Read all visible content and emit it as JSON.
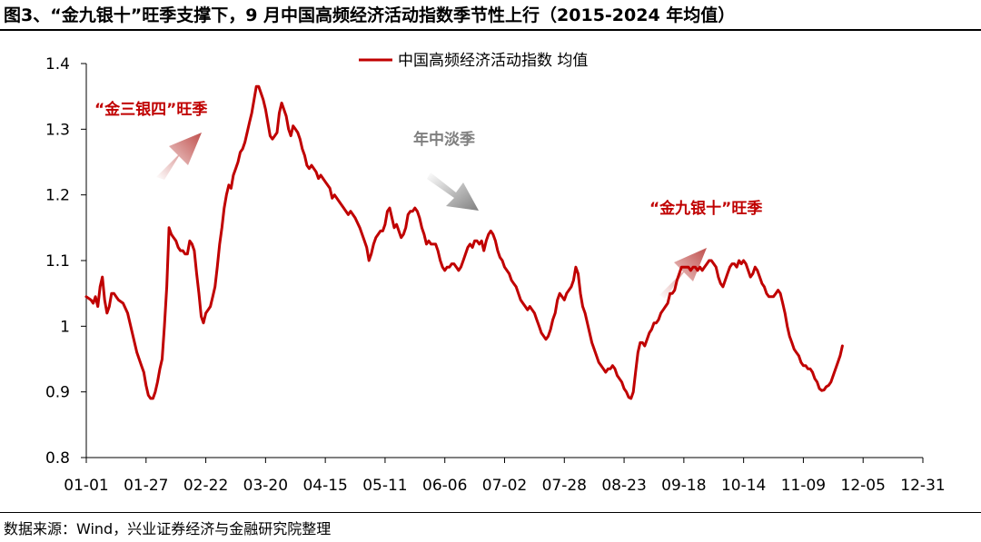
{
  "title": "图3、“金九银十”旺季支撑下，9 月中国高频经济活动指数季节性上行（2015-2024 年均值）",
  "source": "数据来源：Wind，兴业证券经济与金融研究院整理",
  "colors": {
    "line": "#c00000",
    "arrow_red": "#c0504d",
    "arrow_gray": "#7f7f7f",
    "annotation_red": "#c00000",
    "annotation_gray": "#7f7f7f"
  },
  "chart_data": {
    "type": "line",
    "legend": {
      "label": "中国高频经济活动指数 均值",
      "position": "top-center"
    },
    "ylim": [
      0.8,
      1.4
    ],
    "yticks": [
      "0.8",
      "0.9",
      "1",
      "1.1",
      "1.2",
      "1.3",
      "1.4"
    ],
    "xlim": [
      0,
      364
    ],
    "xticks": [
      "01-01",
      "01-27",
      "02-22",
      "03-20",
      "04-15",
      "05-11",
      "06-06",
      "07-02",
      "07-28",
      "08-23",
      "09-18",
      "10-14",
      "11-09",
      "12-05",
      "12-31"
    ],
    "grid": false,
    "annotations": [
      {
        "text": "“金三银四”旺季",
        "color": "red",
        "arrow": "up-right"
      },
      {
        "text": "年中淡季",
        "color": "gray",
        "arrow": "down-right"
      },
      {
        "text": "“金九银十”旺季",
        "color": "red",
        "arrow": "up-right"
      }
    ],
    "series": [
      {
        "name": "中国高频经济活动指数 均值",
        "points": [
          [
            0,
            1.045
          ],
          [
            2,
            1.04
          ],
          [
            3,
            1.035
          ],
          [
            4,
            1.045
          ],
          [
            5,
            1.03
          ],
          [
            6,
            1.06
          ],
          [
            7,
            1.075
          ],
          [
            8,
            1.04
          ],
          [
            9,
            1.02
          ],
          [
            10,
            1.03
          ],
          [
            11,
            1.05
          ],
          [
            12,
            1.05
          ],
          [
            13,
            1.045
          ],
          [
            14,
            1.04
          ],
          [
            16,
            1.035
          ],
          [
            18,
            1.02
          ],
          [
            20,
            0.99
          ],
          [
            22,
            0.96
          ],
          [
            24,
            0.94
          ],
          [
            25,
            0.93
          ],
          [
            26,
            0.91
          ],
          [
            27,
            0.895
          ],
          [
            28,
            0.89
          ],
          [
            29,
            0.89
          ],
          [
            30,
            0.9
          ],
          [
            31,
            0.915
          ],
          [
            32,
            0.935
          ],
          [
            33,
            0.95
          ],
          [
            34,
            1.0
          ],
          [
            35,
            1.06
          ],
          [
            36,
            1.15
          ],
          [
            37,
            1.14
          ],
          [
            38,
            1.135
          ],
          [
            39,
            1.13
          ],
          [
            40,
            1.12
          ],
          [
            41,
            1.115
          ],
          [
            42,
            1.115
          ],
          [
            43,
            1.11
          ],
          [
            44,
            1.11
          ],
          [
            45,
            1.13
          ],
          [
            46,
            1.125
          ],
          [
            47,
            1.115
          ],
          [
            48,
            1.08
          ],
          [
            49,
            1.05
          ],
          [
            50,
            1.015
          ],
          [
            51,
            1.005
          ],
          [
            52,
            1.02
          ],
          [
            53,
            1.025
          ],
          [
            54,
            1.03
          ],
          [
            55,
            1.045
          ],
          [
            56,
            1.06
          ],
          [
            57,
            1.09
          ],
          [
            58,
            1.125
          ],
          [
            59,
            1.15
          ],
          [
            60,
            1.18
          ],
          [
            61,
            1.2
          ],
          [
            62,
            1.215
          ],
          [
            63,
            1.21
          ],
          [
            64,
            1.23
          ],
          [
            65,
            1.24
          ],
          [
            66,
            1.25
          ],
          [
            67,
            1.265
          ],
          [
            68,
            1.27
          ],
          [
            69,
            1.28
          ],
          [
            70,
            1.295
          ],
          [
            71,
            1.31
          ],
          [
            72,
            1.325
          ],
          [
            73,
            1.345
          ],
          [
            74,
            1.365
          ],
          [
            75,
            1.365
          ],
          [
            76,
            1.355
          ],
          [
            77,
            1.345
          ],
          [
            78,
            1.33
          ],
          [
            79,
            1.31
          ],
          [
            80,
            1.29
          ],
          [
            81,
            1.285
          ],
          [
            82,
            1.29
          ],
          [
            83,
            1.295
          ],
          [
            84,
            1.325
          ],
          [
            85,
            1.34
          ],
          [
            86,
            1.33
          ],
          [
            87,
            1.32
          ],
          [
            88,
            1.3
          ],
          [
            89,
            1.29
          ],
          [
            90,
            1.305
          ],
          [
            91,
            1.3
          ],
          [
            92,
            1.295
          ],
          [
            93,
            1.285
          ],
          [
            94,
            1.27
          ],
          [
            95,
            1.26
          ],
          [
            96,
            1.245
          ],
          [
            97,
            1.24
          ],
          [
            98,
            1.245
          ],
          [
            99,
            1.24
          ],
          [
            100,
            1.235
          ],
          [
            101,
            1.225
          ],
          [
            102,
            1.23
          ],
          [
            104,
            1.22
          ],
          [
            106,
            1.21
          ],
          [
            107,
            1.195
          ],
          [
            108,
            1.2
          ],
          [
            110,
            1.19
          ],
          [
            112,
            1.18
          ],
          [
            114,
            1.17
          ],
          [
            115,
            1.175
          ],
          [
            117,
            1.165
          ],
          [
            119,
            1.15
          ],
          [
            121,
            1.13
          ],
          [
            122,
            1.12
          ],
          [
            123,
            1.1
          ],
          [
            124,
            1.11
          ],
          [
            125,
            1.125
          ],
          [
            126,
            1.135
          ],
          [
            127,
            1.14
          ],
          [
            128,
            1.145
          ],
          [
            129,
            1.145
          ],
          [
            130,
            1.155
          ],
          [
            131,
            1.175
          ],
          [
            132,
            1.18
          ],
          [
            133,
            1.165
          ],
          [
            134,
            1.15
          ],
          [
            135,
            1.155
          ],
          [
            136,
            1.145
          ],
          [
            137,
            1.135
          ],
          [
            138,
            1.14
          ],
          [
            139,
            1.15
          ],
          [
            140,
            1.17
          ],
          [
            141,
            1.175
          ],
          [
            142,
            1.175
          ],
          [
            143,
            1.18
          ],
          [
            144,
            1.175
          ],
          [
            145,
            1.165
          ],
          [
            146,
            1.15
          ],
          [
            147,
            1.14
          ],
          [
            148,
            1.125
          ],
          [
            149,
            1.13
          ],
          [
            150,
            1.125
          ],
          [
            152,
            1.125
          ],
          [
            153,
            1.115
          ],
          [
            154,
            1.1
          ],
          [
            155,
            1.09
          ],
          [
            156,
            1.085
          ],
          [
            157,
            1.09
          ],
          [
            158,
            1.09
          ],
          [
            159,
            1.095
          ],
          [
            160,
            1.095
          ],
          [
            161,
            1.09
          ],
          [
            162,
            1.085
          ],
          [
            163,
            1.09
          ],
          [
            164,
            1.1
          ],
          [
            165,
            1.11
          ],
          [
            166,
            1.12
          ],
          [
            167,
            1.125
          ],
          [
            168,
            1.12
          ],
          [
            169,
            1.13
          ],
          [
            170,
            1.13
          ],
          [
            171,
            1.125
          ],
          [
            172,
            1.13
          ],
          [
            173,
            1.115
          ],
          [
            174,
            1.13
          ],
          [
            175,
            1.14
          ],
          [
            176,
            1.145
          ],
          [
            177,
            1.14
          ],
          [
            178,
            1.13
          ],
          [
            179,
            1.115
          ],
          [
            180,
            1.105
          ],
          [
            181,
            1.1
          ],
          [
            182,
            1.09
          ],
          [
            184,
            1.08
          ],
          [
            185,
            1.07
          ],
          [
            186,
            1.065
          ],
          [
            187,
            1.06
          ],
          [
            188,
            1.05
          ],
          [
            189,
            1.04
          ],
          [
            190,
            1.035
          ],
          [
            191,
            1.03
          ],
          [
            192,
            1.025
          ],
          [
            193,
            1.03
          ],
          [
            194,
            1.025
          ],
          [
            195,
            1.02
          ],
          [
            196,
            1.01
          ],
          [
            197,
            1.0
          ],
          [
            198,
            0.99
          ],
          [
            199,
            0.985
          ],
          [
            200,
            0.98
          ],
          [
            201,
            0.985
          ],
          [
            202,
            0.995
          ],
          [
            203,
            1.01
          ],
          [
            204,
            1.02
          ],
          [
            205,
            1.04
          ],
          [
            206,
            1.05
          ],
          [
            207,
            1.045
          ],
          [
            208,
            1.04
          ],
          [
            209,
            1.05
          ],
          [
            210,
            1.055
          ],
          [
            211,
            1.06
          ],
          [
            212,
            1.07
          ],
          [
            213,
            1.09
          ],
          [
            214,
            1.08
          ],
          [
            215,
            1.05
          ],
          [
            216,
            1.03
          ],
          [
            217,
            1.02
          ],
          [
            218,
            1.005
          ],
          [
            219,
            0.99
          ],
          [
            220,
            0.975
          ],
          [
            221,
            0.965
          ],
          [
            222,
            0.955
          ],
          [
            223,
            0.945
          ],
          [
            224,
            0.94
          ],
          [
            225,
            0.935
          ],
          [
            226,
            0.93
          ],
          [
            227,
            0.935
          ],
          [
            228,
            0.935
          ],
          [
            229,
            0.94
          ],
          [
            230,
            0.935
          ],
          [
            231,
            0.925
          ],
          [
            232,
            0.92
          ],
          [
            233,
            0.915
          ],
          [
            234,
            0.905
          ],
          [
            235,
            0.9
          ],
          [
            236,
            0.892
          ],
          [
            237,
            0.89
          ],
          [
            238,
            0.9
          ],
          [
            239,
            0.93
          ],
          [
            240,
            0.96
          ],
          [
            241,
            0.975
          ],
          [
            242,
            0.975
          ],
          [
            243,
            0.97
          ],
          [
            244,
            0.98
          ],
          [
            245,
            0.99
          ],
          [
            246,
            0.995
          ],
          [
            247,
            1.005
          ],
          [
            248,
            1.005
          ],
          [
            249,
            1.01
          ],
          [
            250,
            1.02
          ],
          [
            251,
            1.025
          ],
          [
            252,
            1.03
          ],
          [
            253,
            1.035
          ],
          [
            254,
            1.05
          ],
          [
            255,
            1.05
          ],
          [
            256,
            1.055
          ],
          [
            257,
            1.07
          ],
          [
            258,
            1.08
          ],
          [
            259,
            1.09
          ],
          [
            260,
            1.09
          ],
          [
            261,
            1.09
          ],
          [
            262,
            1.09
          ],
          [
            263,
            1.085
          ],
          [
            264,
            1.09
          ],
          [
            265,
            1.09
          ],
          [
            266,
            1.085
          ],
          [
            267,
            1.09
          ],
          [
            268,
            1.085
          ],
          [
            269,
            1.09
          ],
          [
            270,
            1.095
          ],
          [
            271,
            1.1
          ],
          [
            272,
            1.1
          ],
          [
            273,
            1.095
          ],
          [
            274,
            1.09
          ],
          [
            275,
            1.075
          ],
          [
            276,
            1.065
          ],
          [
            277,
            1.06
          ],
          [
            278,
            1.07
          ],
          [
            279,
            1.08
          ],
          [
            280,
            1.09
          ],
          [
            281,
            1.095
          ],
          [
            282,
            1.095
          ],
          [
            283,
            1.09
          ],
          [
            284,
            1.1
          ],
          [
            285,
            1.095
          ],
          [
            286,
            1.1
          ],
          [
            287,
            1.095
          ],
          [
            288,
            1.085
          ],
          [
            289,
            1.075
          ],
          [
            290,
            1.08
          ],
          [
            291,
            1.09
          ],
          [
            292,
            1.085
          ],
          [
            293,
            1.075
          ],
          [
            294,
            1.065
          ],
          [
            295,
            1.06
          ],
          [
            296,
            1.05
          ],
          [
            297,
            1.045
          ],
          [
            298,
            1.045
          ],
          [
            299,
            1.045
          ],
          [
            300,
            1.05
          ],
          [
            301,
            1.055
          ],
          [
            302,
            1.05
          ],
          [
            303,
            1.035
          ],
          [
            304,
            1.02
          ],
          [
            305,
            1.0
          ],
          [
            306,
            0.985
          ],
          [
            307,
            0.975
          ],
          [
            308,
            0.965
          ],
          [
            309,
            0.96
          ],
          [
            310,
            0.955
          ],
          [
            311,
            0.945
          ],
          [
            312,
            0.94
          ],
          [
            313,
            0.94
          ],
          [
            314,
            0.935
          ],
          [
            315,
            0.935
          ],
          [
            316,
            0.93
          ],
          [
            317,
            0.92
          ],
          [
            318,
            0.915
          ],
          [
            319,
            0.905
          ],
          [
            320,
            0.902
          ],
          [
            321,
            0.903
          ],
          [
            322,
            0.908
          ],
          [
            323,
            0.91
          ],
          [
            324,
            0.915
          ],
          [
            325,
            0.925
          ],
          [
            326,
            0.935
          ],
          [
            327,
            0.945
          ],
          [
            328,
            0.955
          ],
          [
            329,
            0.97
          ]
        ]
      }
    ]
  }
}
